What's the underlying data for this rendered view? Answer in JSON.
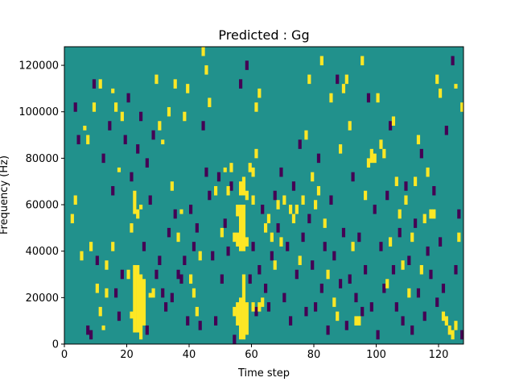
{
  "chart_data": {
    "type": "heatmap",
    "title": "Predicted : Gg",
    "xlabel": "Time step",
    "ylabel": "Frequency (Hz)",
    "xlim": [
      0,
      128
    ],
    "ylim": [
      0,
      128000
    ],
    "x_ticks": [
      0,
      20,
      40,
      60,
      80,
      100,
      120
    ],
    "x_tick_labels": [
      "0",
      "20",
      "40",
      "60",
      "80",
      "100",
      "120"
    ],
    "y_ticks": [
      0,
      20000,
      40000,
      60000,
      80000,
      100000,
      120000
    ],
    "y_tick_labels": [
      "0",
      "20000",
      "40000",
      "60000",
      "80000",
      "100000",
      "120000"
    ],
    "n_time_steps": 128,
    "n_freq_bins": 128,
    "values": [
      -1,
      0,
      1
    ],
    "colormap": {
      "-1": "#440154",
      "0": "#21918c",
      "1": "#fde725"
    },
    "grid": false,
    "cells_high": [
      [
        22,
        5,
        34
      ],
      [
        23,
        5,
        34
      ],
      [
        24,
        2,
        30
      ],
      [
        25,
        8,
        28
      ],
      [
        56,
        2,
        20
      ],
      [
        57,
        2,
        30
      ],
      [
        58,
        4,
        18
      ],
      [
        55,
        8,
        18
      ],
      [
        54,
        12,
        16
      ],
      [
        21,
        11,
        14
      ],
      [
        27,
        20,
        22
      ],
      [
        28,
        20,
        24
      ],
      [
        56,
        40,
        60
      ],
      [
        57,
        40,
        60
      ],
      [
        55,
        42,
        48
      ],
      [
        54,
        44,
        48
      ],
      [
        58,
        42,
        46
      ],
      [
        55,
        55,
        60
      ],
      [
        56,
        64,
        70
      ],
      [
        57,
        64,
        72
      ],
      [
        58,
        62,
        66
      ],
      [
        60,
        72,
        76
      ],
      [
        22,
        56,
        66
      ],
      [
        23,
        54,
        58
      ],
      [
        24,
        58,
        60
      ],
      [
        21,
        48,
        52
      ],
      [
        20,
        28,
        32
      ],
      [
        11,
        12,
        16
      ],
      [
        12,
        6,
        8
      ],
      [
        13,
        20,
        24
      ],
      [
        13,
        32,
        36
      ],
      [
        15,
        40,
        44
      ],
      [
        18,
        96,
        100
      ],
      [
        17,
        74,
        76
      ],
      [
        16,
        100,
        104
      ],
      [
        15,
        108,
        110
      ],
      [
        42,
        12,
        16
      ],
      [
        43,
        36,
        40
      ],
      [
        36,
        44,
        48
      ],
      [
        37,
        56,
        58
      ],
      [
        61,
        100,
        104
      ],
      [
        62,
        106,
        110
      ],
      [
        60,
        14,
        18
      ],
      [
        62,
        14,
        18
      ],
      [
        63,
        16,
        20
      ],
      [
        65,
        52,
        56
      ],
      [
        66,
        44,
        48
      ],
      [
        69,
        42,
        46
      ],
      [
        72,
        56,
        60
      ],
      [
        74,
        56,
        60
      ],
      [
        88,
        82,
        86
      ],
      [
        93,
        8,
        12
      ],
      [
        94,
        8,
        12
      ],
      [
        96,
        62,
        66
      ],
      [
        97,
        76,
        80
      ],
      [
        98,
        78,
        84
      ],
      [
        99,
        78,
        82
      ],
      [
        101,
        84,
        88
      ],
      [
        102,
        80,
        84
      ],
      [
        100,
        104,
        108
      ],
      [
        104,
        42,
        46
      ],
      [
        105,
        94,
        98
      ],
      [
        108,
        32,
        36
      ],
      [
        112,
        68,
        72
      ],
      [
        114,
        30,
        34
      ],
      [
        117,
        54,
        58
      ],
      [
        118,
        54,
        58
      ],
      [
        121,
        10,
        14
      ],
      [
        122,
        8,
        12
      ],
      [
        123,
        4,
        8
      ],
      [
        124,
        2,
        6
      ],
      [
        125,
        6,
        10
      ],
      [
        126,
        44,
        48
      ],
      [
        127,
        100,
        104
      ],
      [
        125,
        110,
        112
      ],
      [
        2,
        52,
        56
      ],
      [
        3,
        60,
        64
      ],
      [
        5,
        36,
        40
      ],
      [
        6,
        92,
        94
      ],
      [
        7,
        86,
        90
      ],
      [
        8,
        40,
        44
      ],
      [
        9,
        100,
        104
      ],
      [
        10,
        22,
        26
      ],
      [
        11,
        110,
        114
      ],
      [
        29,
        112,
        116
      ],
      [
        30,
        92,
        96
      ],
      [
        31,
        86,
        88
      ],
      [
        33,
        98,
        102
      ],
      [
        34,
        66,
        70
      ],
      [
        35,
        110,
        114
      ],
      [
        38,
        96,
        100
      ],
      [
        39,
        108,
        112
      ],
      [
        40,
        26,
        30
      ],
      [
        41,
        20,
        24
      ],
      [
        44,
        124,
        128
      ],
      [
        45,
        116,
        120
      ],
      [
        46,
        102,
        106
      ],
      [
        48,
        64,
        68
      ],
      [
        50,
        46,
        50
      ],
      [
        51,
        74,
        76
      ],
      [
        52,
        64,
        68
      ],
      [
        53,
        74,
        78
      ],
      [
        59,
        74,
        78
      ],
      [
        60,
        60,
        64
      ],
      [
        61,
        80,
        84
      ],
      [
        64,
        48,
        52
      ],
      [
        67,
        32,
        36
      ],
      [
        68,
        58,
        62
      ],
      [
        70,
        60,
        64
      ],
      [
        73,
        52,
        56
      ],
      [
        75,
        34,
        38
      ],
      [
        76,
        60,
        64
      ],
      [
        77,
        88,
        92
      ],
      [
        78,
        112,
        116
      ],
      [
        79,
        70,
        74
      ],
      [
        80,
        58,
        62
      ],
      [
        81,
        64,
        68
      ],
      [
        82,
        120,
        124
      ],
      [
        83,
        50,
        54
      ],
      [
        84,
        28,
        32
      ],
      [
        85,
        104,
        108
      ],
      [
        86,
        16,
        20
      ],
      [
        87,
        10,
        14
      ],
      [
        89,
        108,
        112
      ],
      [
        90,
        112,
        116
      ],
      [
        91,
        92,
        96
      ],
      [
        92,
        40,
        44
      ],
      [
        95,
        120,
        124
      ],
      [
        103,
        24,
        28
      ],
      [
        106,
        68,
        72
      ],
      [
        107,
        54,
        58
      ],
      [
        109,
        60,
        64
      ],
      [
        110,
        20,
        24
      ],
      [
        111,
        44,
        48
      ],
      [
        113,
        86,
        90
      ],
      [
        115,
        52,
        56
      ],
      [
        116,
        72,
        76
      ],
      [
        119,
        112,
        116
      ],
      [
        120,
        106,
        110
      ]
    ],
    "cells_low": [
      [
        7,
        4,
        8
      ],
      [
        8,
        2,
        6
      ],
      [
        9,
        110,
        114
      ],
      [
        4,
        86,
        90
      ],
      [
        3,
        100,
        104
      ],
      [
        14,
        92,
        96
      ],
      [
        16,
        20,
        24
      ],
      [
        17,
        10,
        14
      ],
      [
        18,
        28,
        32
      ],
      [
        19,
        86,
        90
      ],
      [
        26,
        4,
        8
      ],
      [
        27,
        60,
        64
      ],
      [
        28,
        88,
        92
      ],
      [
        29,
        28,
        32
      ],
      [
        30,
        34,
        38
      ],
      [
        31,
        20,
        24
      ],
      [
        32,
        14,
        18
      ],
      [
        33,
        46,
        50
      ],
      [
        34,
        18,
        22
      ],
      [
        35,
        54,
        58
      ],
      [
        36,
        28,
        32
      ],
      [
        37,
        26,
        30
      ],
      [
        38,
        34,
        38
      ],
      [
        39,
        8,
        12
      ],
      [
        40,
        56,
        60
      ],
      [
        41,
        40,
        44
      ],
      [
        42,
        48,
        52
      ],
      [
        43,
        6,
        10
      ],
      [
        44,
        92,
        96
      ],
      [
        45,
        72,
        76
      ],
      [
        46,
        62,
        66
      ],
      [
        47,
        36,
        40
      ],
      [
        48,
        8,
        12
      ],
      [
        49,
        70,
        74
      ],
      [
        50,
        26,
        30
      ],
      [
        51,
        50,
        54
      ],
      [
        52,
        38,
        42
      ],
      [
        53,
        66,
        70
      ],
      [
        54,
        0,
        4
      ],
      [
        56,
        110,
        114
      ],
      [
        58,
        118,
        122
      ],
      [
        59,
        26,
        30
      ],
      [
        60,
        40,
        44
      ],
      [
        61,
        12,
        16
      ],
      [
        62,
        30,
        34
      ],
      [
        63,
        56,
        60
      ],
      [
        64,
        22,
        26
      ],
      [
        65,
        14,
        18
      ],
      [
        66,
        36,
        40
      ],
      [
        67,
        62,
        66
      ],
      [
        68,
        48,
        52
      ],
      [
        69,
        72,
        76
      ],
      [
        70,
        18,
        22
      ],
      [
        71,
        40,
        44
      ],
      [
        72,
        8,
        12
      ],
      [
        73,
        66,
        70
      ],
      [
        74,
        28,
        32
      ],
      [
        75,
        84,
        88
      ],
      [
        76,
        44,
        48
      ],
      [
        77,
        12,
        16
      ],
      [
        78,
        52,
        56
      ],
      [
        79,
        32,
        36
      ],
      [
        80,
        14,
        18
      ],
      [
        81,
        78,
        82
      ],
      [
        82,
        22,
        26
      ],
      [
        83,
        40,
        44
      ],
      [
        84,
        4,
        8
      ],
      [
        85,
        60,
        64
      ],
      [
        86,
        36,
        40
      ],
      [
        87,
        112,
        116
      ],
      [
        88,
        24,
        28
      ],
      [
        89,
        46,
        50
      ],
      [
        90,
        6,
        10
      ],
      [
        91,
        26,
        30
      ],
      [
        92,
        70,
        74
      ],
      [
        93,
        18,
        22
      ],
      [
        94,
        44,
        48
      ],
      [
        95,
        12,
        16
      ],
      [
        96,
        30,
        34
      ],
      [
        97,
        104,
        108
      ],
      [
        98,
        14,
        18
      ],
      [
        99,
        56,
        60
      ],
      [
        100,
        2,
        6
      ],
      [
        101,
        40,
        44
      ],
      [
        102,
        22,
        26
      ],
      [
        103,
        62,
        66
      ],
      [
        104,
        92,
        96
      ],
      [
        105,
        30,
        34
      ],
      [
        106,
        14,
        18
      ],
      [
        107,
        46,
        50
      ],
      [
        108,
        8,
        12
      ],
      [
        109,
        66,
        70
      ],
      [
        110,
        34,
        38
      ],
      [
        111,
        4,
        8
      ],
      [
        112,
        50,
        54
      ],
      [
        113,
        20,
        24
      ],
      [
        114,
        80,
        84
      ],
      [
        115,
        10,
        14
      ],
      [
        116,
        38,
        42
      ],
      [
        117,
        28,
        32
      ],
      [
        118,
        64,
        68
      ],
      [
        119,
        16,
        20
      ],
      [
        120,
        42,
        46
      ],
      [
        121,
        22,
        26
      ],
      [
        122,
        90,
        94
      ],
      [
        123,
        4,
        8
      ],
      [
        124,
        120,
        124
      ],
      [
        125,
        30,
        34
      ],
      [
        126,
        54,
        58
      ],
      [
        127,
        2,
        6
      ],
      [
        10,
        34,
        38
      ],
      [
        12,
        78,
        82
      ],
      [
        15,
        64,
        68
      ],
      [
        20,
        104,
        108
      ],
      [
        21,
        70,
        74
      ],
      [
        23,
        82,
        86
      ],
      [
        24,
        96,
        100
      ],
      [
        25,
        40,
        44
      ],
      [
        26,
        76,
        80
      ]
    ]
  }
}
